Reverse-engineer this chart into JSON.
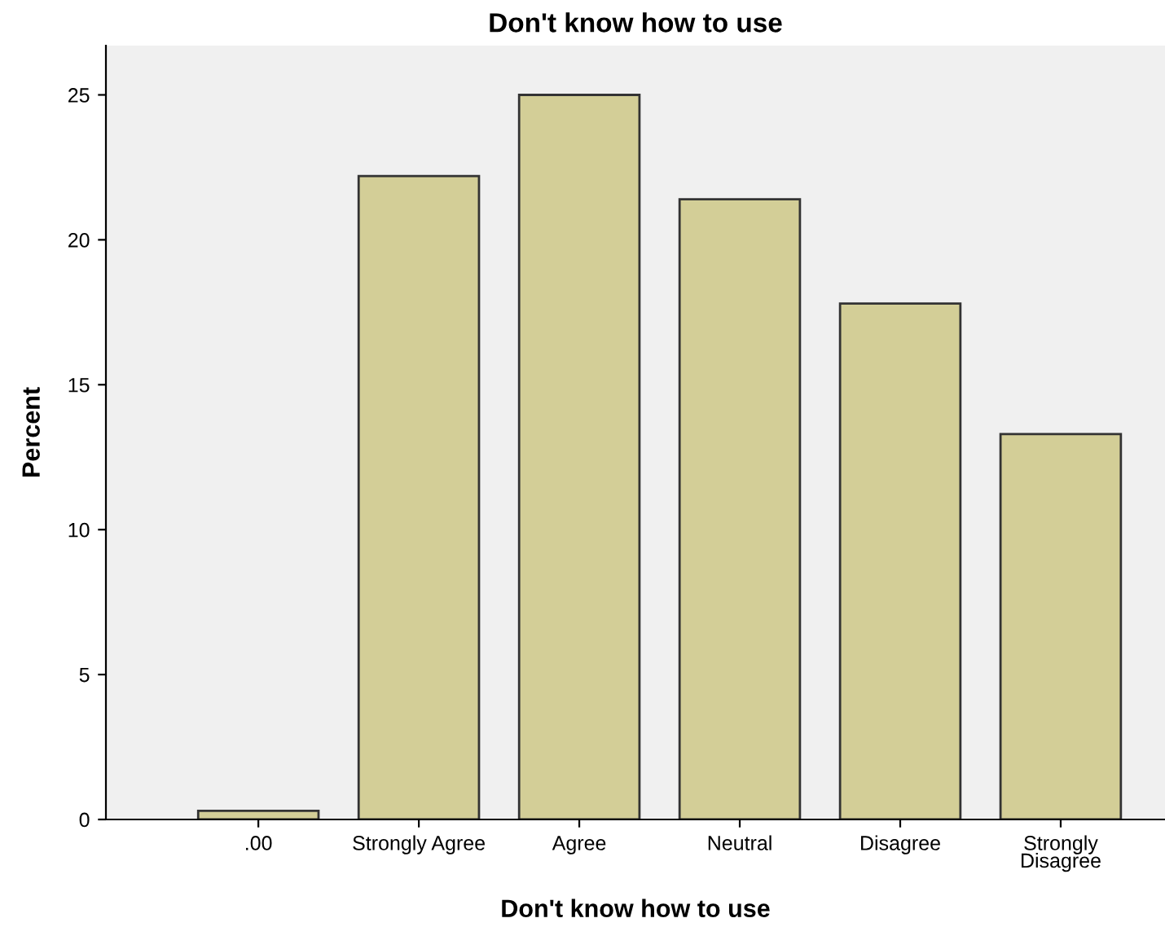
{
  "chart_data": {
    "type": "bar",
    "title": "Don't know how to use",
    "xlabel": "Don't know how to use",
    "ylabel": "Percent",
    "categories": [
      ".00",
      "Strongly Agree",
      "Agree",
      "Neutral",
      "Disagree",
      "Strongly\nDisagree"
    ],
    "values": [
      0.3,
      22.2,
      25.0,
      21.4,
      17.8,
      13.3
    ],
    "color": "#d3ce97",
    "ylim": [
      0,
      26.7
    ],
    "yticks": [
      0,
      5,
      10,
      15,
      20,
      25
    ],
    "grid": false,
    "legend": false
  }
}
